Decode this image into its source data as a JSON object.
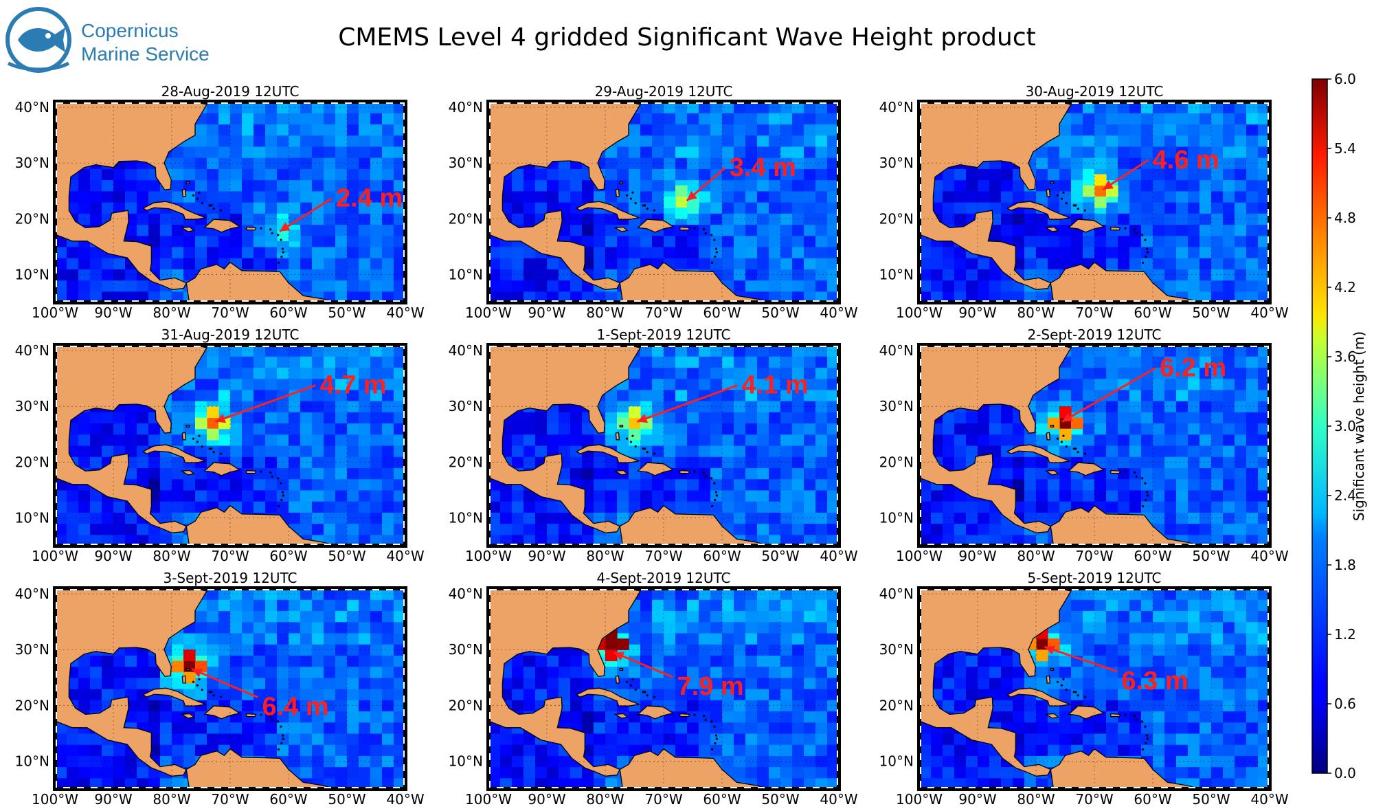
{
  "logo": {
    "line1": "Copernicus",
    "line2": "Marine Service",
    "color": "#2b7cb3"
  },
  "title": "CMEMS Level 4 gridded Significant Wave Height product",
  "colorbar": {
    "label": "Significant wave height (m)",
    "min": 0.0,
    "max": 6.0,
    "ticks": [
      "0.0",
      "0.6",
      "1.2",
      "1.8",
      "2.4",
      "3.0",
      "3.6",
      "4.2",
      "4.8",
      "5.4",
      "6.0"
    ],
    "colormap": "jet"
  },
  "axes": {
    "x_ticks": [
      "100°W",
      "90°W",
      "80°W",
      "70°W",
      "60°W",
      "50°W",
      "40°W"
    ],
    "y_ticks": [
      "40°N",
      "30°N",
      "20°N",
      "10°N"
    ],
    "lon_range": [
      -100,
      -40
    ],
    "lat_range": [
      5,
      41
    ]
  },
  "colors": {
    "land": "#eda366",
    "ocean_base": "#1e3cd2",
    "annotation": "#ff1f1f"
  },
  "panels": [
    {
      "title": "28-Aug-2019 12UTC",
      "label": "2.4 m",
      "peak_lon": -62,
      "peak_lat": 17.5,
      "peak_swh": 2.4
    },
    {
      "title": "29-Aug-2019 12UTC",
      "label": "3.4 m",
      "peak_lon": -66.5,
      "peak_lat": 23,
      "peak_swh": 3.4
    },
    {
      "title": "30-Aug-2019 12UTC",
      "label": "4.6 m",
      "peak_lon": -69,
      "peak_lat": 25,
      "peak_swh": 4.6
    },
    {
      "title": "31-Aug-2019 12UTC",
      "label": "4.7 m",
      "peak_lon": -73,
      "peak_lat": 27,
      "peak_swh": 4.7
    },
    {
      "title": "1-Sept-2019 12UTC",
      "label": "4.1 m",
      "peak_lon": -75,
      "peak_lat": 27,
      "peak_swh": 4.1
    },
    {
      "title": "2-Sept-2019 12UTC",
      "label": "6.2 m",
      "peak_lon": -76,
      "peak_lat": 27,
      "peak_swh": 6.2
    },
    {
      "title": "3-Sept-2019 12UTC",
      "label": "6.4 m",
      "peak_lon": -77,
      "peak_lat": 27,
      "peak_swh": 6.4
    },
    {
      "title": "4-Sept-2019 12UTC",
      "label": "7.9 m",
      "peak_lon": -79,
      "peak_lat": 30,
      "peak_swh": 7.9
    },
    {
      "title": "5-Sept-2019 12UTC",
      "label": "6.3 m",
      "peak_lon": -79,
      "peak_lat": 31,
      "peak_swh": 6.3
    }
  ]
}
